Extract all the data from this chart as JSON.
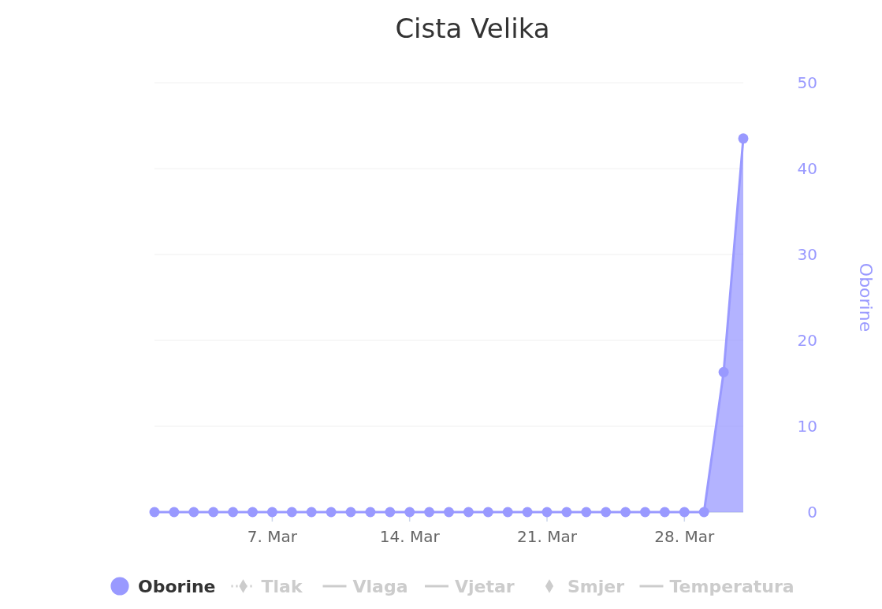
{
  "chart_data": {
    "type": "area",
    "title": "Cista Velika",
    "ylabel": "Oborine",
    "x": [
      "--03-01",
      "--03-02",
      "--03-03",
      "--03-04",
      "--03-05",
      "--03-06",
      "--03-07",
      "--03-08",
      "--03-09",
      "--03-10",
      "--03-11",
      "--03-12",
      "--03-13",
      "--03-14",
      "--03-15",
      "--03-16",
      "--03-17",
      "--03-18",
      "--03-19",
      "--03-20",
      "--03-21",
      "--03-22",
      "--03-23",
      "--03-24",
      "--03-25",
      "--03-26",
      "--03-27",
      "--03-28",
      "--03-29",
      "--03-30",
      "--03-31"
    ],
    "xlim": [
      "--03-01",
      "--03-31"
    ],
    "xticks": [
      {
        "value": "--03-07",
        "label": "7. Mar"
      },
      {
        "value": "--03-14",
        "label": "14. Mar"
      },
      {
        "value": "--03-21",
        "label": "21. Mar"
      },
      {
        "value": "--03-28",
        "label": "28. Mar"
      }
    ],
    "ylim": [
      0,
      50
    ],
    "yticks": [
      0,
      10,
      20,
      30,
      40,
      50
    ],
    "grid": "y",
    "legend": "bottom",
    "series": [
      {
        "name": "Oborine",
        "color": "#9999ff",
        "marker": "circle",
        "line_style": "solid",
        "values": [
          0,
          0,
          0,
          0,
          0,
          0,
          0,
          0,
          0,
          0,
          0,
          0,
          0,
          0,
          0,
          0,
          0,
          0,
          0,
          0,
          0,
          0,
          0,
          0,
          0,
          0,
          0,
          0,
          0,
          16.3,
          43.5
        ]
      },
      {
        "name": "Tlak",
        "color": "#cccccc",
        "marker": "diamond",
        "line_style": "dotted",
        "values": [
          null,
          null,
          null,
          null,
          null,
          null,
          null,
          null,
          null,
          null,
          null,
          null,
          null,
          null,
          null,
          null,
          null,
          null,
          null,
          null,
          null,
          null,
          null,
          null,
          null,
          null,
          null,
          null,
          null,
          null,
          null
        ]
      },
      {
        "name": "Vlaga",
        "color": "#cccccc",
        "marker": "none",
        "line_style": "solid",
        "values": [
          null,
          null,
          null,
          null,
          null,
          null,
          null,
          null,
          null,
          null,
          null,
          null,
          null,
          null,
          null,
          null,
          null,
          null,
          null,
          null,
          null,
          null,
          null,
          null,
          null,
          null,
          null,
          null,
          null,
          null,
          null
        ]
      },
      {
        "name": "Vjetar",
        "color": "#cccccc",
        "marker": "none",
        "line_style": "solid",
        "values": [
          null,
          null,
          null,
          null,
          null,
          null,
          null,
          null,
          null,
          null,
          null,
          null,
          null,
          null,
          null,
          null,
          null,
          null,
          null,
          null,
          null,
          null,
          null,
          null,
          null,
          null,
          null,
          null,
          null,
          null,
          null
        ]
      },
      {
        "name": "Smjer",
        "color": "#cccccc",
        "marker": "diamond",
        "line_style": "none",
        "values": [
          null,
          null,
          null,
          null,
          null,
          null,
          null,
          null,
          null,
          null,
          null,
          null,
          null,
          null,
          null,
          null,
          null,
          null,
          null,
          null,
          null,
          null,
          null,
          null,
          null,
          null,
          null,
          null,
          null,
          null,
          null
        ]
      },
      {
        "name": "Temperatura",
        "color": "#cccccc",
        "marker": "none",
        "line_style": "solid",
        "values": [
          null,
          null,
          null,
          null,
          null,
          null,
          null,
          null,
          null,
          null,
          null,
          null,
          null,
          null,
          null,
          null,
          null,
          null,
          null,
          null,
          null,
          null,
          null,
          null,
          null,
          null,
          null,
          null,
          null,
          null,
          null
        ]
      }
    ]
  }
}
